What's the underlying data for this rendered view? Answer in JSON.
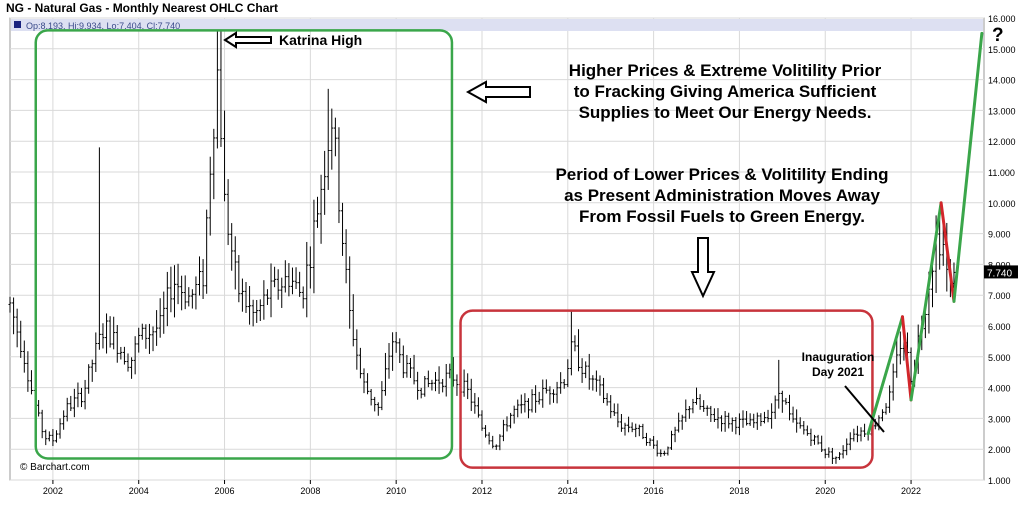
{
  "title": "NG - Natural Gas - Monthly Nearest OHLC Chart",
  "ohlc_readout": "Op:8.193, Hi:9.934, Lo:7.404, Cl:7.740",
  "last_price_label": "7.740",
  "copyright": "© Barchart.com",
  "colors": {
    "bars": "#000000",
    "green_box": "#3aa64a",
    "red_box": "#c8343c",
    "green_arrow": "#3aa64a",
    "red_arrow": "#d2262b",
    "band": "#dde0f2",
    "grid": "#d9d9d9"
  },
  "annotations": {
    "katrina": "Katrina High",
    "higher_prices": [
      "Higher Prices & Extreme Volitility Prior",
      "to Fracking Giving America Sufficient",
      "Supplies to Meet Our Energy Needs."
    ],
    "lower_prices": [
      "Period of Lower Prices & Volitility Ending",
      "as Present Administration Moves Away",
      "From Fossil Fuels to Green Energy."
    ],
    "inauguration": [
      "Inauguration",
      "Day 2021"
    ],
    "question_mark": "?"
  },
  "chart_data": {
    "type": "ohlc",
    "title": "NG - Natural Gas - Monthly Nearest OHLC Chart",
    "x_ticks": [
      "2002",
      "2004",
      "2006",
      "2008",
      "2010",
      "2012",
      "2014",
      "2016",
      "2018",
      "2020",
      "2022"
    ],
    "y_ticks": [
      "1.000",
      "2.000",
      "3.000",
      "4.000",
      "5.000",
      "6.000",
      "7.000",
      "8.000",
      "9.000",
      "10.000",
      "11.000",
      "12.000",
      "13.000",
      "14.000",
      "15.000",
      "16.000"
    ],
    "ylim": [
      1.0,
      16.0
    ],
    "xlim": [
      2001.0,
      2023.7
    ],
    "y_axis_side": "right",
    "grid": true,
    "price_anchors": [
      [
        2001.0,
        6.7
      ],
      [
        2001.3,
        5.2
      ],
      [
        2001.6,
        3.3
      ],
      [
        2001.8,
        2.4
      ],
      [
        2002.0,
        2.3
      ],
      [
        2002.3,
        3.3
      ],
      [
        2002.7,
        3.8
      ],
      [
        2003.0,
        5.2
      ],
      [
        2003.2,
        6.0
      ],
      [
        2003.5,
        5.4
      ],
      [
        2003.8,
        4.8
      ],
      [
        2004.0,
        5.6
      ],
      [
        2004.5,
        6.0
      ],
      [
        2004.8,
        7.5
      ],
      [
        2005.2,
        6.9
      ],
      [
        2005.5,
        7.6
      ],
      [
        2005.7,
        12.0
      ],
      [
        2005.85,
        14.5
      ],
      [
        2006.0,
        10.0
      ],
      [
        2006.3,
        7.2
      ],
      [
        2006.7,
        6.3
      ],
      [
        2007.0,
        7.0
      ],
      [
        2007.5,
        7.6
      ],
      [
        2007.8,
        7.0
      ],
      [
        2008.0,
        8.4
      ],
      [
        2008.5,
        12.8
      ],
      [
        2008.9,
        6.5
      ],
      [
        2009.2,
        4.2
      ],
      [
        2009.6,
        3.3
      ],
      [
        2009.9,
        5.6
      ],
      [
        2010.2,
        4.6
      ],
      [
        2010.6,
        4.0
      ],
      [
        2010.9,
        4.2
      ],
      [
        2011.3,
        4.4
      ],
      [
        2011.7,
        3.8
      ],
      [
        2012.0,
        2.7
      ],
      [
        2012.3,
        2.1
      ],
      [
        2012.7,
        3.2
      ],
      [
        2013.0,
        3.4
      ],
      [
        2013.5,
        3.9
      ],
      [
        2013.9,
        4.2
      ],
      [
        2014.1,
        5.3
      ],
      [
        2014.4,
        4.5
      ],
      [
        2014.8,
        3.8
      ],
      [
        2015.2,
        2.8
      ],
      [
        2015.6,
        2.7
      ],
      [
        2016.0,
        2.1
      ],
      [
        2016.2,
        1.8
      ],
      [
        2016.6,
        2.8
      ],
      [
        2016.9,
        3.6
      ],
      [
        2017.3,
        3.1
      ],
      [
        2017.8,
        2.9
      ],
      [
        2018.3,
        2.8
      ],
      [
        2018.8,
        3.3
      ],
      [
        2018.95,
        4.0
      ],
      [
        2019.2,
        2.9
      ],
      [
        2019.7,
        2.4
      ],
      [
        2020.0,
        1.9
      ],
      [
        2020.3,
        1.7
      ],
      [
        2020.6,
        2.5
      ],
      [
        2020.9,
        2.6
      ],
      [
        2021.1,
        2.7
      ],
      [
        2021.5,
        3.7
      ],
      [
        2021.8,
        5.8
      ],
      [
        2022.0,
        4.4
      ],
      [
        2022.3,
        6.5
      ],
      [
        2022.6,
        9.0
      ],
      [
        2022.75,
        8.6
      ],
      [
        2022.9,
        7.0
      ],
      [
        2023.0,
        7.74
      ]
    ],
    "spikes": [
      [
        2003.1,
        11.8
      ],
      [
        2005.9,
        15.6
      ],
      [
        2008.45,
        13.7
      ],
      [
        2014.1,
        6.5
      ],
      [
        2018.9,
        4.9
      ],
      [
        2022.7,
        9.9
      ]
    ],
    "last_close": 7.74,
    "trend_lines": [
      {
        "color": "green",
        "points": [
          [
            2021.0,
            2.5
          ],
          [
            2021.8,
            6.3
          ]
        ]
      },
      {
        "color": "red",
        "points": [
          [
            2021.8,
            6.3
          ],
          [
            2022.0,
            3.6
          ]
        ]
      },
      {
        "color": "green",
        "points": [
          [
            2022.0,
            3.6
          ],
          [
            2022.7,
            10.0
          ]
        ]
      },
      {
        "color": "red",
        "points": [
          [
            2022.7,
            10.0
          ],
          [
            2023.0,
            6.8
          ]
        ]
      },
      {
        "color": "green",
        "points": [
          [
            2023.0,
            6.8
          ],
          [
            2023.65,
            15.5
          ]
        ]
      }
    ],
    "regions": [
      {
        "color": "green",
        "x": [
          2001.6,
          2011.3
        ],
        "y": [
          1.7,
          15.6
        ]
      },
      {
        "color": "red",
        "x": [
          2011.5,
          2021.1
        ],
        "y": [
          1.4,
          6.5
        ]
      }
    ]
  }
}
